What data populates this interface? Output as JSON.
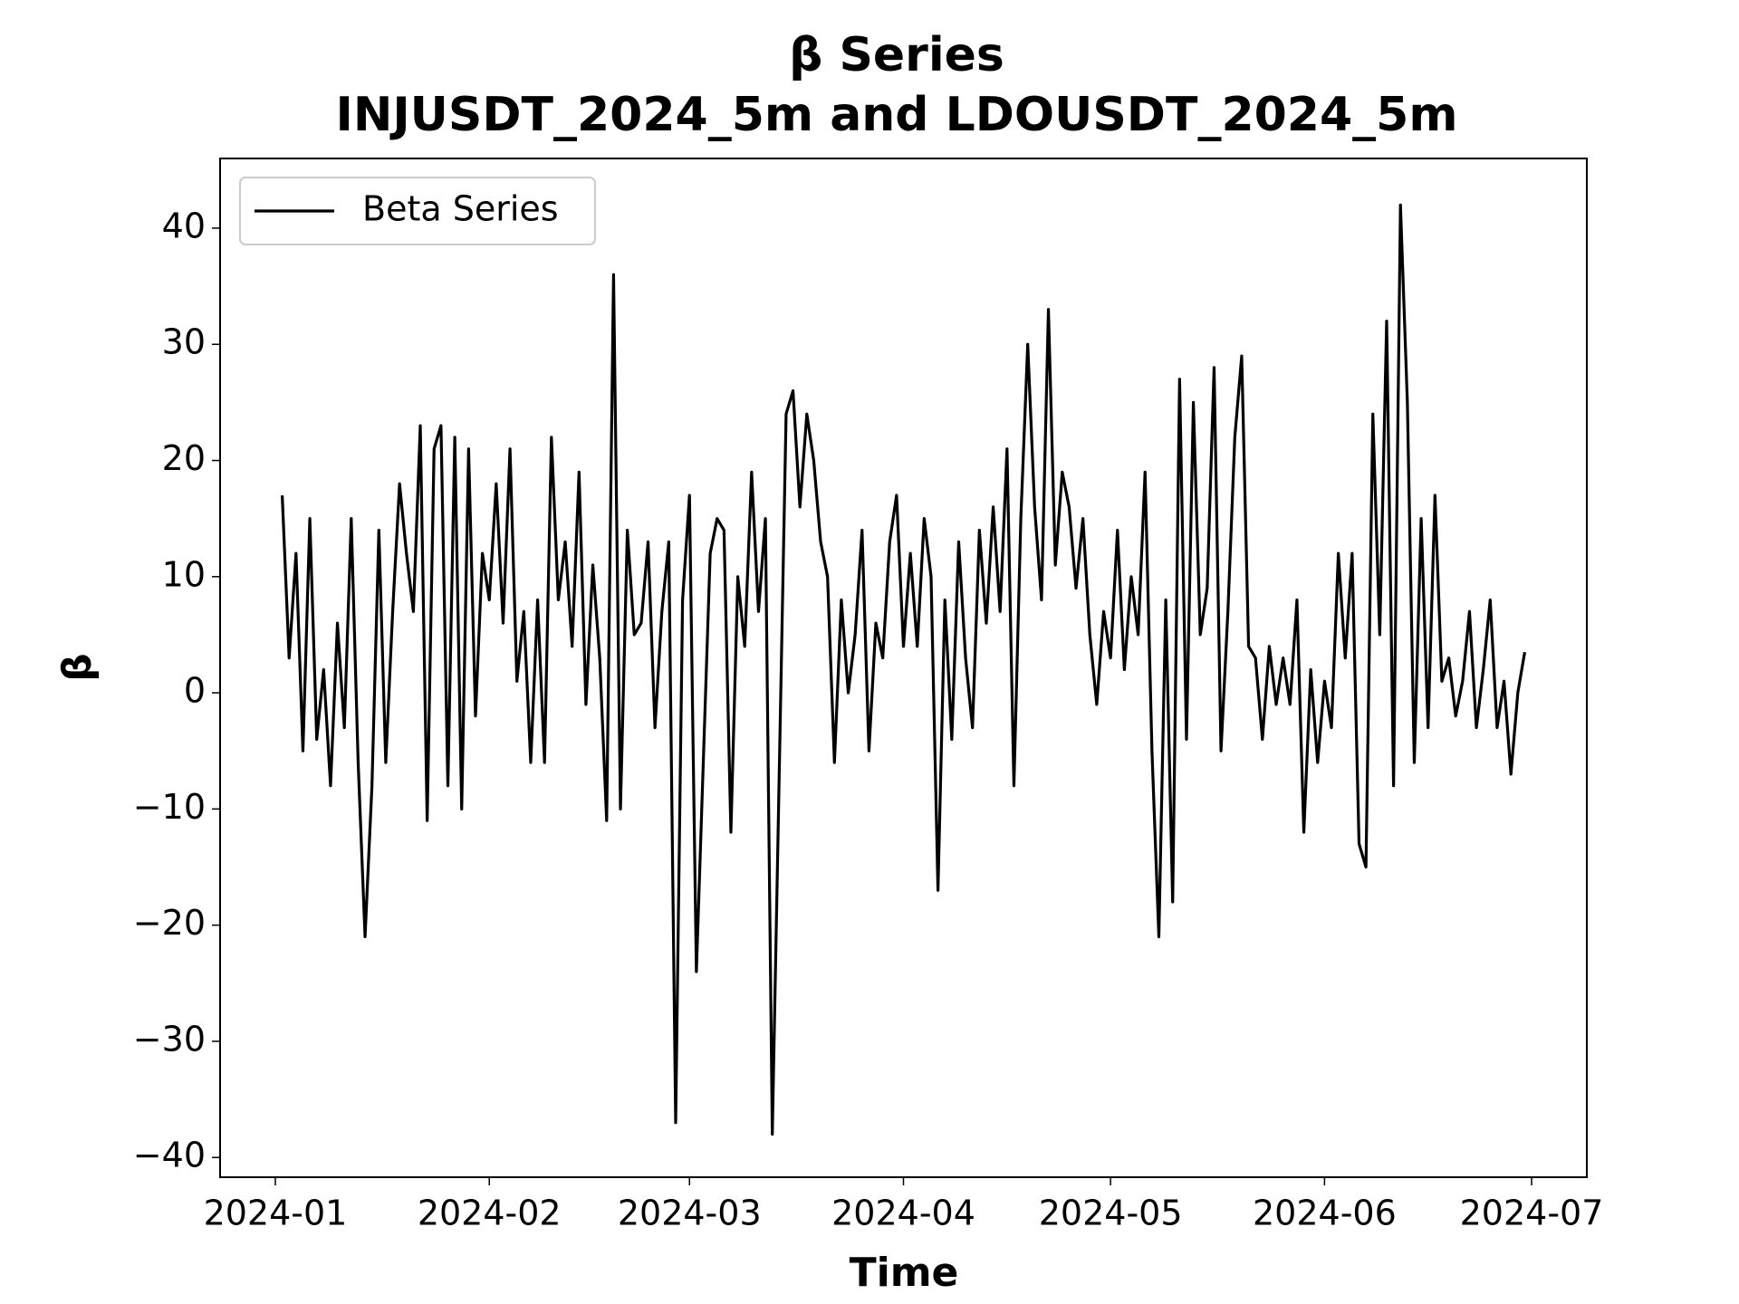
{
  "chart_data": {
    "type": "line",
    "title": "β Series",
    "subtitle": "INJUSDT_2024_5m and LDOUSDT_2024_5m",
    "x_label": "Time",
    "y_label": "β",
    "x": [
      1,
      2,
      3,
      4,
      5,
      6,
      7,
      8,
      9,
      10,
      11,
      12,
      13,
      14,
      15,
      16,
      17,
      18,
      19,
      20,
      21,
      22,
      23,
      24,
      25,
      26,
      27,
      28,
      29,
      30,
      31,
      32,
      33,
      34,
      35,
      36,
      37,
      38,
      39,
      40,
      41,
      42,
      43,
      44,
      45,
      46,
      47,
      48,
      49,
      50,
      51,
      52,
      53,
      54,
      55,
      56,
      57,
      58,
      59,
      60,
      61,
      62,
      63,
      64,
      65,
      66,
      67,
      68,
      69,
      70,
      71,
      72,
      73,
      74,
      75,
      76,
      77,
      78,
      79,
      80,
      81,
      82,
      83,
      84,
      85,
      86,
      87,
      88,
      89,
      90,
      91,
      92,
      93,
      94,
      95,
      96,
      97,
      98,
      99,
      100,
      101,
      102,
      103,
      104,
      105,
      106,
      107,
      108,
      109,
      110,
      111,
      112,
      113,
      114,
      115,
      116,
      117,
      118,
      119,
      120,
      121,
      122,
      123,
      124,
      125,
      126,
      127,
      128,
      129,
      130,
      131,
      132,
      133,
      134,
      135,
      136,
      137,
      138,
      139,
      140,
      141,
      142,
      143,
      144,
      145,
      146,
      147,
      148,
      149,
      150,
      151,
      152,
      153,
      154,
      155,
      156,
      157,
      158,
      159,
      160,
      161,
      162,
      163,
      164,
      165,
      166,
      167,
      168,
      169,
      170,
      171,
      172,
      173,
      174,
      175,
      176,
      177,
      178,
      179,
      180,
      181
    ],
    "series": [
      {
        "name": "Beta Series",
        "color": "#000000",
        "values": [
          17,
          3,
          12,
          -5,
          15,
          -4,
          2,
          -8,
          6,
          -3,
          15,
          -6,
          -21,
          -8,
          14,
          -6,
          7,
          18,
          12,
          7,
          23,
          -11,
          21,
          23,
          -8,
          22,
          -10,
          21,
          -2,
          12,
          8,
          18,
          6,
          21,
          1,
          7,
          -6,
          8,
          -6,
          22,
          8,
          13,
          4,
          19,
          -1,
          11,
          3,
          -11,
          36,
          -10,
          14,
          5,
          6,
          13,
          -3,
          7,
          13,
          -37,
          8,
          17,
          -24,
          -6,
          12,
          15,
          14,
          -12,
          10,
          4,
          19,
          7,
          15,
          -38,
          -7,
          24,
          26,
          16,
          24,
          20,
          13,
          10,
          -6,
          8,
          0,
          5,
          14,
          -5,
          6,
          3,
          13,
          17,
          4,
          12,
          4,
          15,
          10,
          -17,
          8,
          -4,
          13,
          3,
          -3,
          14,
          6,
          16,
          7,
          21,
          -8,
          15,
          30,
          16,
          8,
          33,
          11,
          19,
          16,
          9,
          15,
          5,
          -1,
          7,
          3,
          14,
          2,
          10,
          5,
          19,
          -5,
          -21,
          8,
          -18,
          27,
          -4,
          25,
          5,
          9,
          28,
          -5,
          7,
          22,
          29,
          4,
          3,
          -4,
          4,
          -1,
          3,
          -1,
          8,
          -12,
          2,
          -6,
          1,
          -3,
          12,
          3,
          12,
          -13,
          -15,
          24,
          5,
          32,
          -8,
          42,
          25,
          -6,
          15,
          -3,
          17,
          1,
          3,
          -2,
          1,
          7,
          -3,
          2,
          8,
          -3,
          1,
          -7,
          0,
          3.5
        ]
      }
    ],
    "xlim": [
      -8,
      190
    ],
    "xticks": [
      {
        "value": 0,
        "label": "2024-01"
      },
      {
        "value": 31,
        "label": "2024-02"
      },
      {
        "value": 60,
        "label": "2024-03"
      },
      {
        "value": 91,
        "label": "2024-04"
      },
      {
        "value": 121,
        "label": "2024-05"
      },
      {
        "value": 152,
        "label": "2024-06"
      },
      {
        "value": 182,
        "label": "2024-07"
      }
    ],
    "ylim": [
      -41.7,
      46
    ],
    "yticks": [
      {
        "value": -40,
        "label": "−40"
      },
      {
        "value": -30,
        "label": "−30"
      },
      {
        "value": -20,
        "label": "−20"
      },
      {
        "value": -10,
        "label": "−10"
      },
      0,
      10,
      20,
      30,
      40
    ],
    "grid": false,
    "legend": "upper left"
  }
}
